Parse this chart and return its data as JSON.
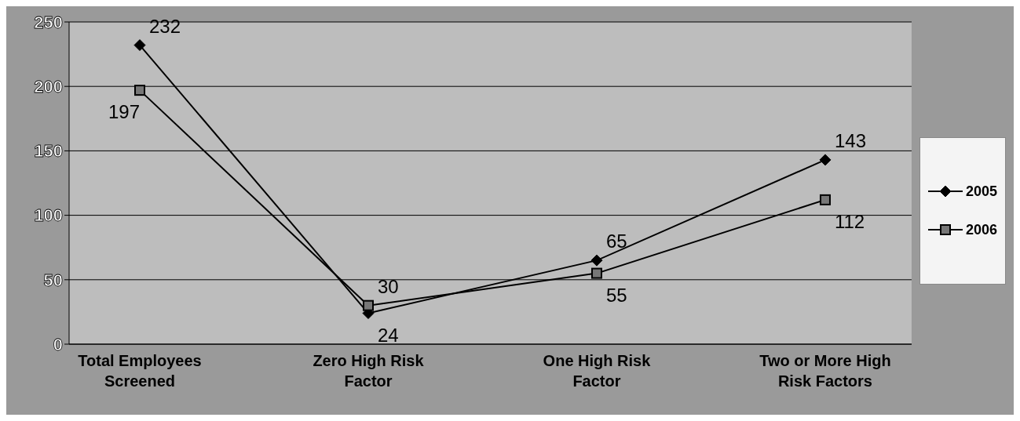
{
  "chart_data": {
    "type": "line",
    "categories": [
      "Total Employees Screened",
      "Zero  High Risk Factor",
      "One High Risk Factor",
      "Two or More High Risk Factors"
    ],
    "series": [
      {
        "name": "2005",
        "color": "#000000",
        "marker": "diamond",
        "values": [
          232,
          24,
          65,
          143
        ]
      },
      {
        "name": "2006",
        "color": "#000000",
        "marker": "square",
        "values": [
          197,
          30,
          55,
          112
        ]
      }
    ],
    "ylim": [
      0,
      250
    ],
    "yticks": [
      0,
      50,
      100,
      150,
      200,
      250
    ],
    "grid": "y",
    "legend": "right",
    "data_labels": true,
    "line_style": "solid"
  }
}
